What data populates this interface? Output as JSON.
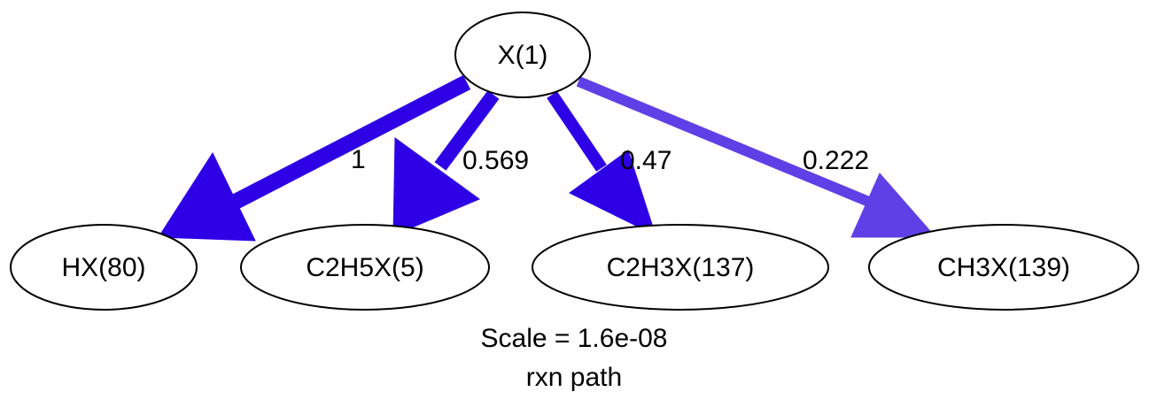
{
  "diagram": {
    "type": "reaction-path-graph",
    "nodes": [
      {
        "id": "X",
        "label": "X(1)"
      },
      {
        "id": "HX",
        "label": "HX(80)"
      },
      {
        "id": "C2H5X",
        "label": "C2H5X(5)"
      },
      {
        "id": "C2H3X",
        "label": "C2H3X(137)"
      },
      {
        "id": "CH3X",
        "label": "CH3X(139)"
      }
    ],
    "edges": [
      {
        "from": "X",
        "to": "HX",
        "label": "1",
        "value": 1,
        "color": "#2e00e6"
      },
      {
        "from": "X",
        "to": "C2H5X",
        "label": "0.569",
        "value": 0.569,
        "color": "#2e00e6"
      },
      {
        "from": "X",
        "to": "C2H3X",
        "label": "0.47",
        "value": 0.47,
        "color": "#2e00e6"
      },
      {
        "from": "X",
        "to": "CH3X",
        "label": "0.222",
        "value": 0.222,
        "color": "#5e40e6"
      }
    ],
    "caption": {
      "scale": "Scale = 1.6e-08",
      "title": "rxn path"
    }
  }
}
